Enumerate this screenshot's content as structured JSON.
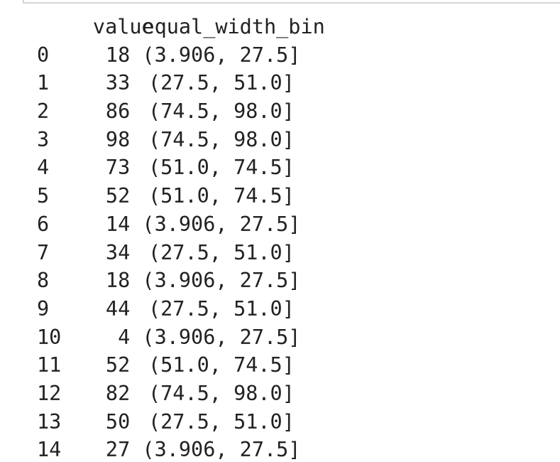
{
  "dataframe": {
    "columns": [
      "value",
      "equal_width_bin"
    ],
    "rows": [
      {
        "index": "0",
        "value": "18",
        "bin": "(3.906, 27.5]"
      },
      {
        "index": "1",
        "value": "33",
        "bin": "(27.5, 51.0]"
      },
      {
        "index": "2",
        "value": "86",
        "bin": "(74.5, 98.0]"
      },
      {
        "index": "3",
        "value": "98",
        "bin": "(74.5, 98.0]"
      },
      {
        "index": "4",
        "value": "73",
        "bin": "(51.0, 74.5]"
      },
      {
        "index": "5",
        "value": "52",
        "bin": "(51.0, 74.5]"
      },
      {
        "index": "6",
        "value": "14",
        "bin": "(3.906, 27.5]"
      },
      {
        "index": "7",
        "value": "34",
        "bin": "(27.5, 51.0]"
      },
      {
        "index": "8",
        "value": "18",
        "bin": "(3.906, 27.5]"
      },
      {
        "index": "9",
        "value": "44",
        "bin": "(27.5, 51.0]"
      },
      {
        "index": "10",
        "value": "4",
        "bin": "(3.906, 27.5]"
      },
      {
        "index": "11",
        "value": "52",
        "bin": "(51.0, 74.5]"
      },
      {
        "index": "12",
        "value": "82",
        "bin": "(74.5, 98.0]"
      },
      {
        "index": "13",
        "value": "50",
        "bin": "(27.5, 51.0]"
      },
      {
        "index": "14",
        "value": "27",
        "bin": "(3.906, 27.5]"
      }
    ]
  }
}
